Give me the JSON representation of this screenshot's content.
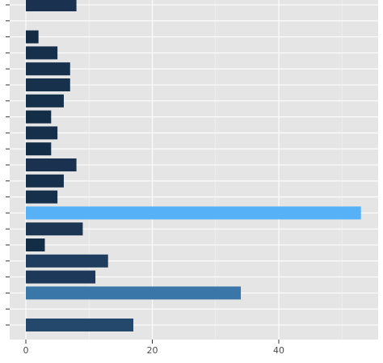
{
  "chart_data": {
    "type": "bar",
    "orientation": "horizontal",
    "title": "",
    "xlabel": "",
    "ylabel": "",
    "xlim": [
      0,
      53
    ],
    "x_ticks": [
      0,
      20,
      40
    ],
    "x_tick_labels": [
      "0",
      "20",
      "40"
    ],
    "grid": true,
    "legend": "none",
    "colors": {
      "panel_bg": "#e5e5e5",
      "grid_major": "#ffffff",
      "grid_minor": "#f2f2f2",
      "axis_text": "#4d4d4d",
      "tick": "#333333"
    },
    "bars": [
      {
        "value": 8,
        "color": "#1a324f"
      },
      {
        "value": null,
        "color": null
      },
      {
        "value": 2,
        "color": "#132b43"
      },
      {
        "value": 5,
        "color": "#16304b"
      },
      {
        "value": 7,
        "color": "#17314d"
      },
      {
        "value": 7,
        "color": "#17314d"
      },
      {
        "value": 6,
        "color": "#16304b"
      },
      {
        "value": 4,
        "color": "#142d47"
      },
      {
        "value": 5,
        "color": "#16304b"
      },
      {
        "value": 4,
        "color": "#142d47"
      },
      {
        "value": 8,
        "color": "#1a324f"
      },
      {
        "value": 6,
        "color": "#16304b"
      },
      {
        "value": 5,
        "color": "#16304b"
      },
      {
        "value": 53,
        "color": "#56b1f7"
      },
      {
        "value": 9,
        "color": "#1b3552"
      },
      {
        "value": 3,
        "color": "#142d47"
      },
      {
        "value": 13,
        "color": "#1f3d5e"
      },
      {
        "value": 11,
        "color": "#1d3858"
      },
      {
        "value": 34,
        "color": "#3a76a8"
      },
      {
        "value": null,
        "color": null
      },
      {
        "value": 17,
        "color": "#24476c"
      }
    ]
  }
}
